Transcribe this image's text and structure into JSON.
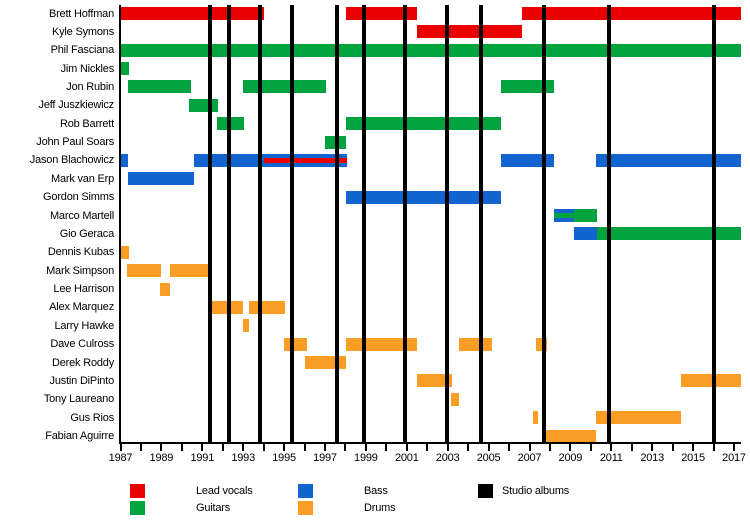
{
  "chart_data": {
    "type": "timeline",
    "description": "Band membership timeline chart, members vs years with instrument roles and studio album release markers",
    "colors": {
      "lead_vocals": "#EA0000",
      "guitars": "#00A33E",
      "bass": "#1264CE",
      "drums": "#FB9E25",
      "studio_albums": "#000000",
      "axis": "#000000",
      "background": "#FFFFFF"
    },
    "legend": [
      {
        "label": "Lead vocals",
        "role": "lead_vocals"
      },
      {
        "label": "Guitars",
        "role": "guitars"
      },
      {
        "label": "Bass",
        "role": "bass"
      },
      {
        "label": "Drums",
        "role": "drums"
      },
      {
        "label": "Studio albums",
        "role": "studio_albums"
      }
    ],
    "x_axis": {
      "start": 1987,
      "end": 2017.35,
      "label_ticks": [
        1987,
        1989,
        1991,
        1993,
        1995,
        1997,
        1999,
        2001,
        2003,
        2005,
        2007,
        2009,
        2011,
        2013,
        2015,
        2017
      ],
      "minor_tick_step": 1,
      "grid": false
    },
    "studio_album_lines_years": [
      1991.4,
      1992.3,
      1993.8,
      1995.4,
      1997.6,
      1998.9,
      2000.9,
      2002.95,
      2004.65,
      2007.7,
      2010.9,
      2016.0
    ],
    "members": [
      {
        "name": "Brett Hoffman",
        "segments": [
          {
            "role": "lead_vocals",
            "start": 1987,
            "end": 1994
          },
          {
            "role": "lead_vocals",
            "start": 1998.05,
            "end": 2001.5
          },
          {
            "role": "lead_vocals",
            "start": 2006.65,
            "end": 2017.35
          }
        ]
      },
      {
        "name": "Kyle Symons",
        "segments": [
          {
            "role": "lead_vocals",
            "start": 2001.5,
            "end": 2006.65
          }
        ]
      },
      {
        "name": "Phil Fasciana",
        "segments": [
          {
            "role": "guitars",
            "start": 1987,
            "end": 2017.35
          }
        ]
      },
      {
        "name": "Jim Nickles",
        "segments": [
          {
            "role": "guitars",
            "start": 1987,
            "end": 1987.4
          }
        ]
      },
      {
        "name": "Jon Rubin",
        "segments": [
          {
            "role": "guitars",
            "start": 1987.35,
            "end": 1990.45
          },
          {
            "role": "guitars",
            "start": 1993,
            "end": 1997.05
          },
          {
            "role": "guitars",
            "start": 2005.6,
            "end": 2008.2
          }
        ]
      },
      {
        "name": "Jeff Juszkiewicz",
        "segments": [
          {
            "role": "guitars",
            "start": 1990.35,
            "end": 1991.75
          }
        ]
      },
      {
        "name": "Rob Barrett",
        "segments": [
          {
            "role": "guitars",
            "start": 1991.7,
            "end": 1993.05
          },
          {
            "role": "guitars",
            "start": 1998.05,
            "end": 2005.6
          }
        ]
      },
      {
        "name": "John Paul Soars",
        "segments": [
          {
            "role": "guitars",
            "start": 1997,
            "end": 1998.05
          }
        ]
      },
      {
        "name": "Jason Blachowicz",
        "segments": [
          {
            "role": "bass",
            "start": 1987,
            "end": 1987.35
          },
          {
            "role": "bass",
            "start": 1990.6,
            "end": 1998.1
          },
          {
            "role": "lead_vocals",
            "start": 1994,
            "end": 1998.1,
            "stripe": true
          },
          {
            "role": "bass",
            "start": 2005.6,
            "end": 2008.2
          },
          {
            "role": "bass",
            "start": 2010.25,
            "end": 2017.35
          }
        ]
      },
      {
        "name": "Mark van Erp",
        "segments": [
          {
            "role": "bass",
            "start": 1987.35,
            "end": 1990.6
          }
        ]
      },
      {
        "name": "Gordon Simms",
        "segments": [
          {
            "role": "bass",
            "start": 1998.05,
            "end": 2005.6
          }
        ]
      },
      {
        "name": "Marco Martell",
        "segments": [
          {
            "role": "bass",
            "start": 2008.2,
            "end": 2009.2
          },
          {
            "role": "guitars",
            "start": 2008.2,
            "end": 2009.2,
            "stripe": true
          },
          {
            "role": "guitars",
            "start": 2009.2,
            "end": 2010.3
          }
        ]
      },
      {
        "name": "Gio Geraca",
        "segments": [
          {
            "role": "bass",
            "start": 2009.2,
            "end": 2010.3
          },
          {
            "role": "guitars",
            "start": 2010.3,
            "end": 2017.35
          }
        ]
      },
      {
        "name": "Dennis Kubas",
        "segments": [
          {
            "role": "drums",
            "start": 1987,
            "end": 1987.4
          }
        ]
      },
      {
        "name": "Mark Simpson",
        "segments": [
          {
            "role": "drums",
            "start": 1987.3,
            "end": 1989
          },
          {
            "role": "drums",
            "start": 1989.4,
            "end": 1991.4
          }
        ]
      },
      {
        "name": "Lee Harrison",
        "segments": [
          {
            "role": "drums",
            "start": 1988.95,
            "end": 1989.4
          }
        ]
      },
      {
        "name": "Alex Marquez",
        "segments": [
          {
            "role": "drums",
            "start": 1991.4,
            "end": 1993
          },
          {
            "role": "drums",
            "start": 1993.3,
            "end": 1995.05
          }
        ]
      },
      {
        "name": "Larry Hawke",
        "segments": [
          {
            "role": "drums",
            "start": 1993,
            "end": 1993.3
          }
        ]
      },
      {
        "name": "Dave Culross",
        "segments": [
          {
            "role": "drums",
            "start": 1995,
            "end": 1996.1
          },
          {
            "role": "drums",
            "start": 1998.05,
            "end": 2001.5
          },
          {
            "role": "drums",
            "start": 2003.55,
            "end": 2005.15
          },
          {
            "role": "drums",
            "start": 2007.3,
            "end": 2007.85
          }
        ]
      },
      {
        "name": "Derek Roddy",
        "segments": [
          {
            "role": "drums",
            "start": 1996,
            "end": 1998.05
          }
        ]
      },
      {
        "name": "Justin DiPinto",
        "segments": [
          {
            "role": "drums",
            "start": 2001.5,
            "end": 2003.2
          },
          {
            "role": "drums",
            "start": 2014.4,
            "end": 2017.35
          }
        ]
      },
      {
        "name": "Tony Laureano",
        "segments": [
          {
            "role": "drums",
            "start": 2003.15,
            "end": 2003.55
          }
        ]
      },
      {
        "name": "Gus Rios",
        "segments": [
          {
            "role": "drums",
            "start": 2007.15,
            "end": 2007.4
          },
          {
            "role": "drums",
            "start": 2010.25,
            "end": 2014.4
          }
        ]
      },
      {
        "name": "Fabian Aguirre",
        "segments": [
          {
            "role": "drums",
            "start": 2007.75,
            "end": 2010.25
          }
        ]
      }
    ]
  }
}
